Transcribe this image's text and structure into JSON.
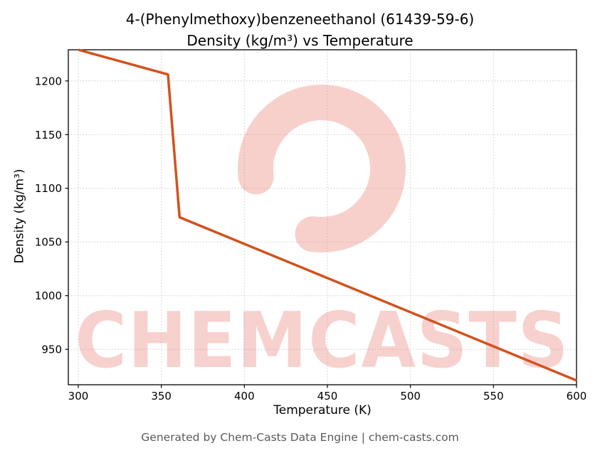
{
  "page": {
    "title_line1": "4-(Phenylmethoxy)benzeneethanol (61439-59-6)",
    "title_line2": "Density (kg/m³) vs Temperature",
    "footer": "Generated by Chem-Casts Data Engine | chem-casts.com",
    "watermark_text": "CHEMCASTS"
  },
  "chart_data": {
    "type": "line",
    "title": "4-(Phenylmethoxy)benzeneethanol (61439-59-6) Density (kg/m³) vs Temperature",
    "xlabel": "Temperature (K)",
    "ylabel": "Density (kg/m³)",
    "series": [
      {
        "name": "Density",
        "x": [
          300,
          354,
          361,
          600
        ],
        "y": [
          1229,
          1206,
          1073,
          921
        ]
      }
    ],
    "xlim": [
      294,
      600
    ],
    "ylim": [
      917,
      1229
    ],
    "xticks": [
      300,
      350,
      400,
      450,
      500,
      550,
      600
    ],
    "yticks": [
      950,
      1000,
      1050,
      1100,
      1150,
      1200
    ],
    "grid": true,
    "legend": false,
    "line_color": "#d2521e",
    "watermark_color": "#e8756a"
  }
}
